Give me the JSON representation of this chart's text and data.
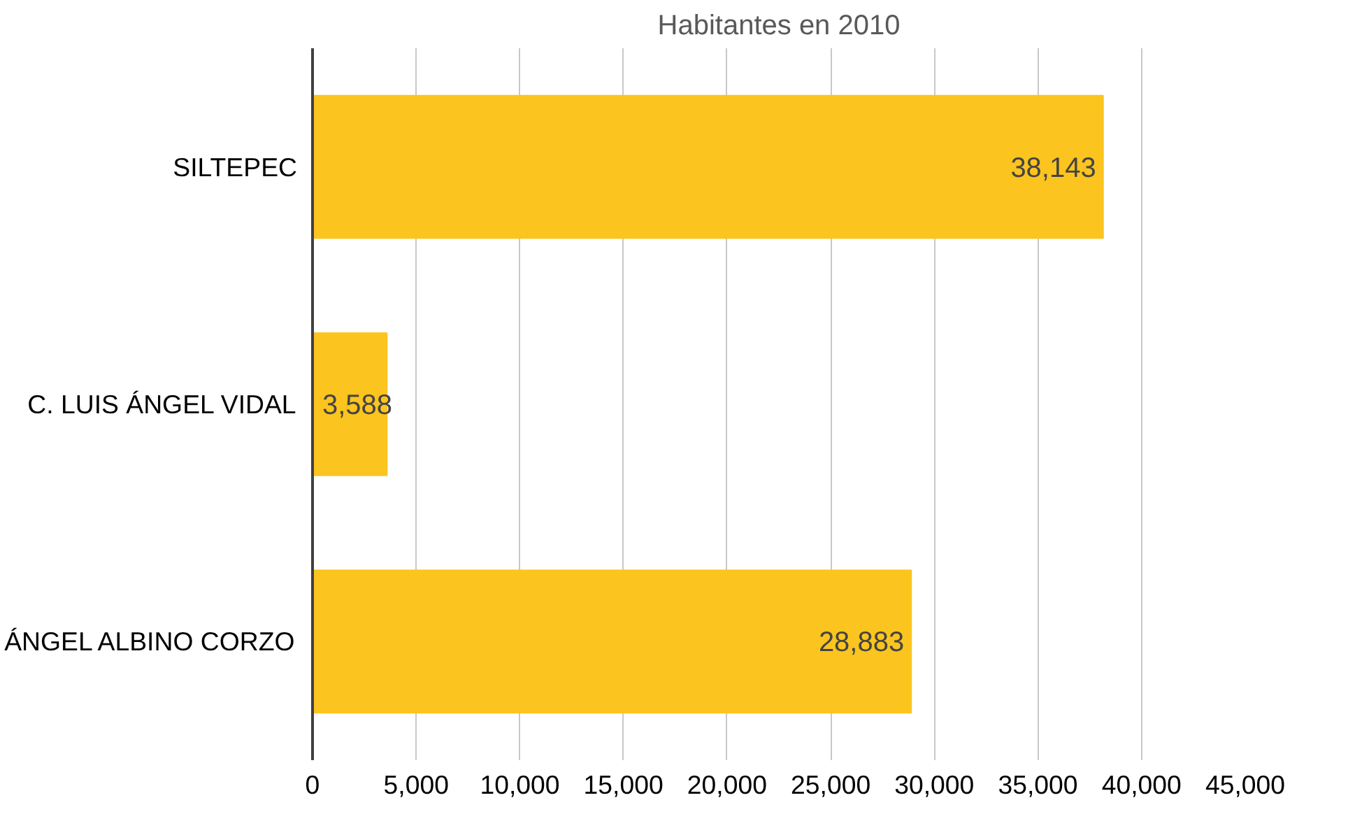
{
  "chart_data": {
    "type": "bar",
    "orientation": "horizontal",
    "title": "Habitantes en 2010",
    "categories": [
      "SILTEPEC",
      "C. LUIS ÁNGEL VIDAL",
      "ÁNGEL ALBINO CORZO"
    ],
    "values": [
      38143,
      3588,
      28883
    ],
    "value_labels": [
      "38,143",
      "3,588",
      "28,883"
    ],
    "color": "#fcc41e",
    "xlim": [
      0,
      45000
    ],
    "xticks": [
      0,
      {
        "value": 5000,
        "label": "5,000"
      },
      {
        "value": 10000,
        "label": "10,000"
      },
      {
        "value": 15000,
        "label": "15,000"
      },
      {
        "value": 20000,
        "label": "20,000"
      },
      {
        "value": 25000,
        "label": "25,000"
      },
      {
        "value": 30000,
        "label": "30,000"
      },
      {
        "value": 35000,
        "label": "35,000"
      },
      {
        "value": 40000,
        "label": "40,000"
      },
      {
        "value": 45000,
        "label": "45,000"
      }
    ],
    "grid": "x"
  }
}
